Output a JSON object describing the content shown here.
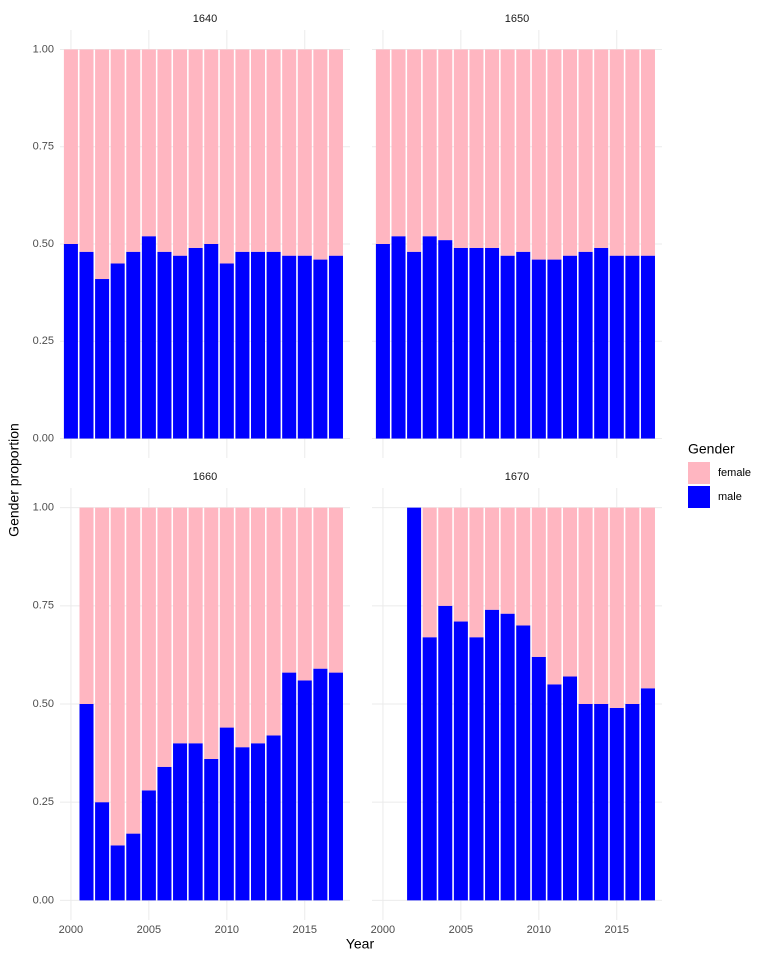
{
  "chart_data": [
    {
      "type": "bar",
      "stacked": true,
      "title": "1640",
      "y_label": "Gender proportion",
      "x_label": "Year",
      "legend_title": "Gender",
      "x": [
        2000,
        2001,
        2002,
        2003,
        2004,
        2005,
        2006,
        2007,
        2008,
        2009,
        2010,
        2011,
        2012,
        2013,
        2014,
        2015,
        2016,
        2017
      ],
      "series": [
        {
          "name": "male",
          "color": "#0000ff",
          "values": [
            0.5,
            0.48,
            0.41,
            0.45,
            0.48,
            0.52,
            0.48,
            0.47,
            0.49,
            0.5,
            0.45,
            0.48,
            0.48,
            0.48,
            0.47,
            0.47,
            0.46,
            0.47
          ]
        },
        {
          "name": "female",
          "color": "#ffb6c1",
          "values": [
            0.5,
            0.52,
            0.59,
            0.55,
            0.52,
            0.48,
            0.52,
            0.53,
            0.51,
            0.5,
            0.55,
            0.52,
            0.52,
            0.52,
            0.53,
            0.53,
            0.54,
            0.53
          ]
        }
      ],
      "xlim": [
        1999.3,
        2017.9
      ],
      "xticks": [
        2000,
        2005,
        2010,
        2015
      ],
      "ylim": [
        -0.05,
        1.05
      ],
      "yticks": [
        {
          "value": 0,
          "label": "0.00"
        },
        {
          "value": 0.25,
          "label": "0.25"
        },
        {
          "value": 0.5,
          "label": "0.50"
        },
        {
          "value": 0.75,
          "label": "0.75"
        },
        {
          "value": 1,
          "label": "1.00"
        }
      ],
      "grid": true
    },
    {
      "type": "bar",
      "stacked": true,
      "title": "1650",
      "x": [
        2000,
        2001,
        2002,
        2003,
        2004,
        2005,
        2006,
        2007,
        2008,
        2009,
        2010,
        2011,
        2012,
        2013,
        2014,
        2015,
        2016,
        2017
      ],
      "series": [
        {
          "name": "male",
          "color": "#0000ff",
          "values": [
            0.5,
            0.52,
            0.48,
            0.52,
            0.51,
            0.49,
            0.49,
            0.49,
            0.47,
            0.48,
            0.46,
            0.46,
            0.47,
            0.48,
            0.49,
            0.47,
            0.47,
            0.47
          ]
        },
        {
          "name": "female",
          "color": "#ffb6c1",
          "values": [
            0.5,
            0.48,
            0.52,
            0.48,
            0.49,
            0.51,
            0.51,
            0.51,
            0.53,
            0.52,
            0.54,
            0.54,
            0.53,
            0.52,
            0.51,
            0.53,
            0.53,
            0.53
          ]
        }
      ],
      "xlim": [
        1999.3,
        2017.9
      ],
      "xticks": [
        2000,
        2005,
        2010,
        2015
      ],
      "ylim": [
        -0.05,
        1.05
      ],
      "yticks": [
        0,
        0.25,
        0.5,
        0.75,
        1
      ],
      "grid": true
    },
    {
      "type": "bar",
      "stacked": true,
      "title": "1660",
      "x": [
        2000,
        2001,
        2002,
        2003,
        2004,
        2005,
        2006,
        2007,
        2008,
        2009,
        2010,
        2011,
        2012,
        2013,
        2014,
        2015,
        2016,
        2017
      ],
      "series": [
        {
          "name": "male",
          "color": "#0000ff",
          "values": [
            null,
            0.5,
            0.25,
            0.14,
            0.17,
            0.28,
            0.34,
            0.4,
            0.4,
            0.36,
            0.44,
            0.39,
            0.4,
            0.42,
            0.58,
            0.56,
            0.59,
            0.58
          ]
        },
        {
          "name": "female",
          "color": "#ffb6c1",
          "values": [
            null,
            0.5,
            0.75,
            0.86,
            0.83,
            0.72,
            0.66,
            0.6,
            0.6,
            0.64,
            0.56,
            0.61,
            0.6,
            0.58,
            0.42,
            0.44,
            0.41,
            0.42
          ]
        }
      ],
      "xlim": [
        1999.3,
        2017.9
      ],
      "xticks": [
        2000,
        2005,
        2010,
        2015
      ],
      "ylim": [
        -0.05,
        1.05
      ],
      "yticks": [
        {
          "value": 0,
          "label": "0.00"
        },
        {
          "value": 0.25,
          "label": "0.25"
        },
        {
          "value": 0.5,
          "label": "0.50"
        },
        {
          "value": 0.75,
          "label": "0.75"
        },
        {
          "value": 1,
          "label": "1.00"
        }
      ],
      "grid": true
    },
    {
      "type": "bar",
      "stacked": true,
      "title": "1670",
      "x": [
        2000,
        2001,
        2002,
        2003,
        2004,
        2005,
        2006,
        2007,
        2008,
        2009,
        2010,
        2011,
        2012,
        2013,
        2014,
        2015,
        2016,
        2017
      ],
      "series": [
        {
          "name": "male",
          "color": "#0000ff",
          "values": [
            null,
            null,
            1.0,
            0.67,
            0.75,
            0.71,
            0.67,
            0.74,
            0.73,
            0.7,
            0.62,
            0.55,
            0.57,
            0.5,
            0.5,
            0.49,
            0.5,
            0.54
          ]
        },
        {
          "name": "female",
          "color": "#ffb6c1",
          "values": [
            null,
            null,
            0,
            0.33,
            0.25,
            0.29,
            0.33,
            0.26,
            0.27,
            0.3,
            0.38,
            0.45,
            0.43,
            0.5,
            0.5,
            0.51,
            0.5,
            0.46
          ]
        }
      ],
      "xlim": [
        1999.3,
        2017.9
      ],
      "xticks": [
        2000,
        2005,
        2010,
        2015
      ],
      "ylim": [
        -0.05,
        1.05
      ],
      "yticks": [
        0,
        0.25,
        0.5,
        0.75,
        1
      ],
      "grid": true
    }
  ]
}
